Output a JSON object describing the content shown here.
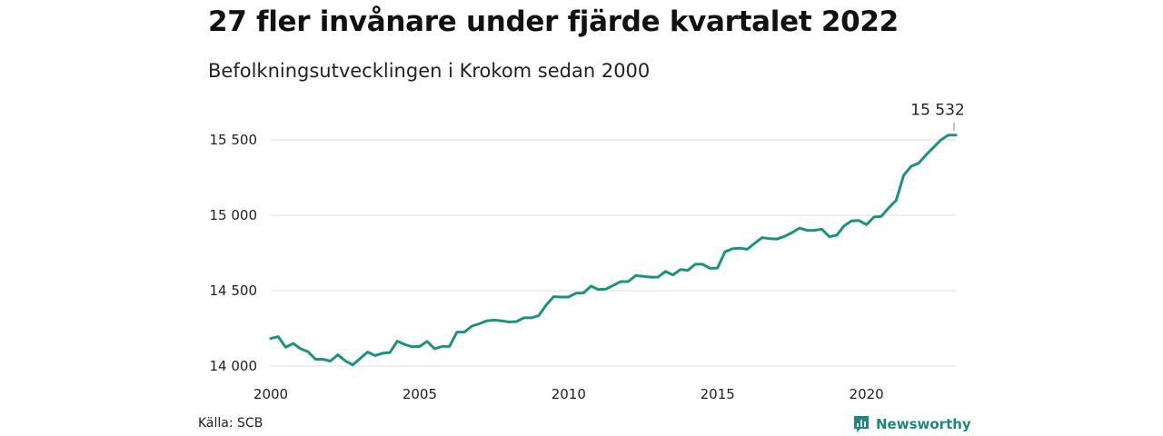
{
  "title": "27 fler invånare under fjärde kvartalet 2022",
  "subtitle": "Befolkningsutvecklingen i Krokom sedan 2000",
  "source": "Källa: SCB",
  "brand": "Newsworthy",
  "colors": {
    "line": "#1b9280",
    "grid": "#dddddd",
    "brand": "#1b8a7a"
  },
  "chart_data": {
    "type": "line",
    "title": "27 fler invånare under fjärde kvartalet 2022",
    "subtitle": "Befolkningsutvecklingen i Krokom sedan 2000",
    "xlabel": "",
    "ylabel": "",
    "xlim": [
      2000,
      2023
    ],
    "ylim": [
      14000,
      15600
    ],
    "x_ticks": [
      2000,
      2005,
      2010,
      2015,
      2020
    ],
    "x_tick_labels": [
      "2000",
      "2005",
      "2010",
      "2015",
      "2020"
    ],
    "y_ticks": [
      14000,
      14500,
      15000,
      15500
    ],
    "y_tick_labels": [
      "14 000",
      "14 500",
      "15 000",
      "15 500"
    ],
    "grid": "horizontal",
    "end_label": "15 532",
    "series": [
      {
        "x": [
          2000.0,
          2000.25,
          2000.5,
          2000.75,
          2001.0,
          2001.25,
          2001.5,
          2001.75,
          2002.0,
          2002.25,
          2002.5,
          2002.75,
          2003.0,
          2003.25,
          2003.5,
          2003.75,
          2004.0,
          2004.25,
          2004.5,
          2004.75,
          2005.0,
          2005.25,
          2005.5,
          2005.75,
          2006.0,
          2006.25,
          2006.5,
          2006.75,
          2007.0,
          2007.25,
          2007.5,
          2007.75,
          2008.0,
          2008.25,
          2008.5,
          2008.75,
          2009.0,
          2009.25,
          2009.5,
          2009.75,
          2010.0,
          2010.25,
          2010.5,
          2010.75,
          2011.0,
          2011.25,
          2011.5,
          2011.75,
          2012.0,
          2012.25,
          2012.5,
          2012.75,
          2013.0,
          2013.25,
          2013.5,
          2013.75,
          2014.0,
          2014.25,
          2014.5,
          2014.75,
          2015.0,
          2015.25,
          2015.5,
          2015.75,
          2016.0,
          2016.25,
          2016.5,
          2016.75,
          2017.0,
          2017.25,
          2017.5,
          2017.75,
          2018.0,
          2018.25,
          2018.5,
          2018.75,
          2019.0,
          2019.25,
          2019.5,
          2019.75,
          2020.0,
          2020.25,
          2020.5,
          2020.75,
          2021.0,
          2021.25,
          2021.5,
          2021.75,
          2022.0,
          2022.25,
          2022.5,
          2022.75,
          2023.0
        ],
        "values": [
          14183,
          14195,
          14125,
          14150,
          14115,
          14095,
          14045,
          14045,
          14033,
          14075,
          14035,
          14008,
          14050,
          14093,
          14070,
          14085,
          14090,
          14165,
          14143,
          14128,
          14130,
          14163,
          14115,
          14130,
          14130,
          14225,
          14225,
          14265,
          14280,
          14300,
          14305,
          14300,
          14292,
          14295,
          14320,
          14320,
          14335,
          14405,
          14460,
          14458,
          14458,
          14483,
          14485,
          14530,
          14508,
          14510,
          14535,
          14560,
          14560,
          14600,
          14595,
          14590,
          14590,
          14628,
          14605,
          14640,
          14635,
          14675,
          14675,
          14648,
          14650,
          14758,
          14778,
          14782,
          14775,
          14815,
          14852,
          14845,
          14843,
          14860,
          14885,
          14915,
          14900,
          14900,
          14908,
          14858,
          14868,
          14930,
          14963,
          14965,
          14938,
          14988,
          14993,
          15050,
          15100,
          15265,
          15325,
          15345,
          15400,
          15450,
          15500,
          15532,
          15532
        ]
      }
    ]
  }
}
